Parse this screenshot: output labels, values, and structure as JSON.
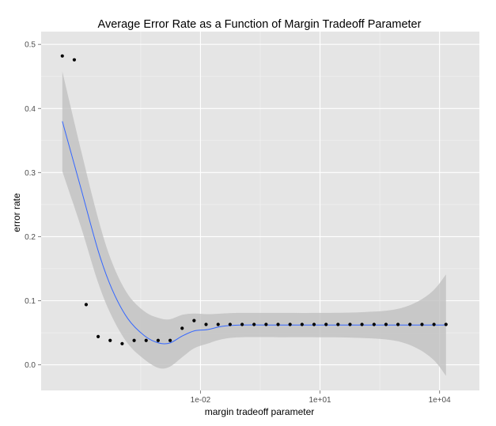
{
  "chart_data": {
    "type": "scatter",
    "title": "Average Error Rate as a Function of Margin Tradeoff Parameter",
    "xlabel": "margin tradeoff parameter",
    "ylabel": "error rate",
    "x_scale": "log10",
    "xlim": [
      1e-06,
      100000.0
    ],
    "ylim": [
      -0.04,
      0.52
    ],
    "x_ticks": [
      {
        "value": 0.01,
        "label": "1e-02"
      },
      {
        "value": 10,
        "label": "1e+01"
      },
      {
        "value": 10000,
        "label": "1e+04"
      }
    ],
    "y_ticks": [
      {
        "value": 0.0,
        "label": "0.0"
      },
      {
        "value": 0.1,
        "label": "0.1"
      },
      {
        "value": 0.2,
        "label": "0.2"
      },
      {
        "value": 0.3,
        "label": "0.3"
      },
      {
        "value": 0.4,
        "label": "0.4"
      },
      {
        "value": 0.5,
        "label": "0.5"
      }
    ],
    "grid": true,
    "colors": {
      "panel_background": "#e5e5e5",
      "grid_major": "#ffffff",
      "grid_minor": "#f2f2f2",
      "points": "#000000",
      "smooth_line": "#3366ff",
      "confidence_band": "#bdbdbd"
    },
    "points": [
      {
        "x": 3.4e-06,
        "y": 0.482
      },
      {
        "x": 6.8e-06,
        "y": 0.476
      },
      {
        "x": 1.35e-05,
        "y": 0.094
      },
      {
        "x": 2.7e-05,
        "y": 0.044
      },
      {
        "x": 5.4e-05,
        "y": 0.038
      },
      {
        "x": 0.000108,
        "y": 0.033
      },
      {
        "x": 0.000216,
        "y": 0.038
      },
      {
        "x": 0.000432,
        "y": 0.038
      },
      {
        "x": 0.000864,
        "y": 0.038
      },
      {
        "x": 0.00173,
        "y": 0.038
      },
      {
        "x": 0.00346,
        "y": 0.057
      },
      {
        "x": 0.0069,
        "y": 0.069
      },
      {
        "x": 0.0138,
        "y": 0.063
      },
      {
        "x": 0.0277,
        "y": 0.063
      },
      {
        "x": 0.0553,
        "y": 0.063
      },
      {
        "x": 0.111,
        "y": 0.063
      },
      {
        "x": 0.221,
        "y": 0.063
      },
      {
        "x": 0.443,
        "y": 0.063
      },
      {
        "x": 0.885,
        "y": 0.063
      },
      {
        "x": 1.77,
        "y": 0.063
      },
      {
        "x": 3.54,
        "y": 0.063
      },
      {
        "x": 7.08,
        "y": 0.063
      },
      {
        "x": 14.2,
        "y": 0.063
      },
      {
        "x": 28.3,
        "y": 0.063
      },
      {
        "x": 56.6,
        "y": 0.063
      },
      {
        "x": 113,
        "y": 0.063
      },
      {
        "x": 227,
        "y": 0.063
      },
      {
        "x": 453,
        "y": 0.063
      },
      {
        "x": 906,
        "y": 0.063
      },
      {
        "x": 1810,
        "y": 0.063
      },
      {
        "x": 3630,
        "y": 0.063
      },
      {
        "x": 7250,
        "y": 0.063
      },
      {
        "x": 14500,
        "y": 0.063
      }
    ],
    "smooth": [
      {
        "x": 3.4e-06,
        "y": 0.38,
        "ymin": 0.302,
        "ymax": 0.458
      },
      {
        "x": 1e-05,
        "y": 0.275,
        "ymin": 0.215,
        "ymax": 0.335
      },
      {
        "x": 2.7e-05,
        "y": 0.178,
        "ymin": 0.128,
        "ymax": 0.228
      },
      {
        "x": 6e-05,
        "y": 0.118,
        "ymin": 0.075,
        "ymax": 0.16
      },
      {
        "x": 0.00015,
        "y": 0.072,
        "ymin": 0.033,
        "ymax": 0.11
      },
      {
        "x": 0.0004,
        "y": 0.045,
        "ymin": 0.008,
        "ymax": 0.083
      },
      {
        "x": 0.0009,
        "y": 0.034,
        "ymin": -0.005,
        "ymax": 0.073
      },
      {
        "x": 0.0017,
        "y": 0.034,
        "ymin": -0.003,
        "ymax": 0.071
      },
      {
        "x": 0.0035,
        "y": 0.045,
        "ymin": 0.012,
        "ymax": 0.078
      },
      {
        "x": 0.007,
        "y": 0.053,
        "ymin": 0.026,
        "ymax": 0.08
      },
      {
        "x": 0.015,
        "y": 0.055,
        "ymin": 0.033,
        "ymax": 0.079
      },
      {
        "x": 0.035,
        "y": 0.06,
        "ymin": 0.04,
        "ymax": 0.08
      },
      {
        "x": 0.1,
        "y": 0.062,
        "ymin": 0.043,
        "ymax": 0.081
      },
      {
        "x": 1,
        "y": 0.062,
        "ymin": 0.043,
        "ymax": 0.081
      },
      {
        "x": 10,
        "y": 0.062,
        "ymin": 0.043,
        "ymax": 0.081
      },
      {
        "x": 100,
        "y": 0.062,
        "ymin": 0.042,
        "ymax": 0.082
      },
      {
        "x": 700,
        "y": 0.062,
        "ymin": 0.038,
        "ymax": 0.086
      },
      {
        "x": 2500,
        "y": 0.062,
        "ymin": 0.027,
        "ymax": 0.097
      },
      {
        "x": 7000,
        "y": 0.062,
        "ymin": 0.008,
        "ymax": 0.116
      },
      {
        "x": 14500,
        "y": 0.062,
        "ymin": -0.017,
        "ymax": 0.141
      }
    ]
  }
}
